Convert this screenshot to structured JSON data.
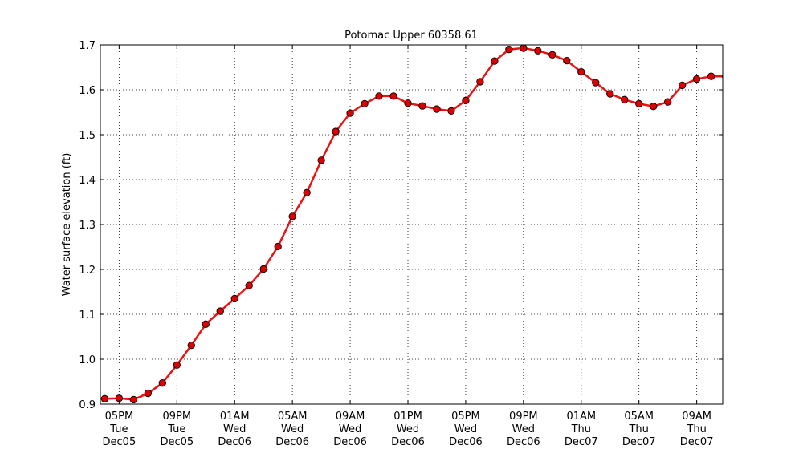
{
  "chart_data": {
    "type": "line",
    "title": "Potomac Upper 60358.61",
    "xlabel": "",
    "ylabel": "Water surface elevation (ft)",
    "ylim": [
      0.9,
      1.7
    ],
    "xlim": [
      -0.3,
      42.8
    ],
    "yticks": [
      0.9,
      1.0,
      1.1,
      1.2,
      1.3,
      1.4,
      1.5,
      1.6,
      1.7
    ],
    "yticklabels": [
      "0.9",
      "1.0",
      "1.1",
      "1.2",
      "1.3",
      "1.4",
      "1.5",
      "1.6",
      "1.7"
    ],
    "xticks": [
      {
        "h": 1,
        "lines": [
          "05PM",
          "Tue",
          "Dec05"
        ]
      },
      {
        "h": 5,
        "lines": [
          "09PM",
          "Tue",
          "Dec05"
        ]
      },
      {
        "h": 9,
        "lines": [
          "01AM",
          "Wed",
          "Dec06"
        ]
      },
      {
        "h": 13,
        "lines": [
          "05AM",
          "Wed",
          "Dec06"
        ]
      },
      {
        "h": 17,
        "lines": [
          "09AM",
          "Wed",
          "Dec06"
        ]
      },
      {
        "h": 21,
        "lines": [
          "01PM",
          "Wed",
          "Dec06"
        ]
      },
      {
        "h": 25,
        "lines": [
          "05PM",
          "Wed",
          "Dec06"
        ]
      },
      {
        "h": 29,
        "lines": [
          "09PM",
          "Wed",
          "Dec06"
        ]
      },
      {
        "h": 33,
        "lines": [
          "01AM",
          "Thu",
          "Dec07"
        ]
      },
      {
        "h": 37,
        "lines": [
          "05AM",
          "Thu",
          "Dec07"
        ]
      },
      {
        "h": 41,
        "lines": [
          "09AM",
          "Thu",
          "Dec07"
        ]
      }
    ],
    "grid": true,
    "series": [
      {
        "color": "#ee1111",
        "marker_color": "#dd0000",
        "x": [
          0,
          1,
          2,
          3,
          4,
          5,
          6,
          7,
          8,
          9,
          10,
          11,
          12,
          13,
          14,
          15,
          16,
          17,
          18,
          19,
          20,
          21,
          22,
          23,
          24,
          25,
          26,
          27,
          28,
          29,
          30,
          31,
          32,
          33,
          34,
          35,
          36,
          37,
          38,
          39,
          40,
          41,
          42,
          43
        ],
        "values": [
          0.912,
          0.913,
          0.91,
          0.924,
          0.947,
          0.987,
          1.031,
          1.078,
          1.107,
          1.135,
          1.164,
          1.201,
          1.251,
          1.318,
          1.371,
          1.443,
          1.507,
          1.548,
          1.569,
          1.586,
          1.586,
          1.57,
          1.564,
          1.557,
          1.553,
          1.576,
          1.618,
          1.664,
          1.69,
          1.693,
          1.687,
          1.678,
          1.665,
          1.64,
          1.616,
          1.591,
          1.578,
          1.569,
          1.563,
          1.573,
          1.61,
          1.624,
          1.63,
          1.63
        ]
      }
    ]
  }
}
